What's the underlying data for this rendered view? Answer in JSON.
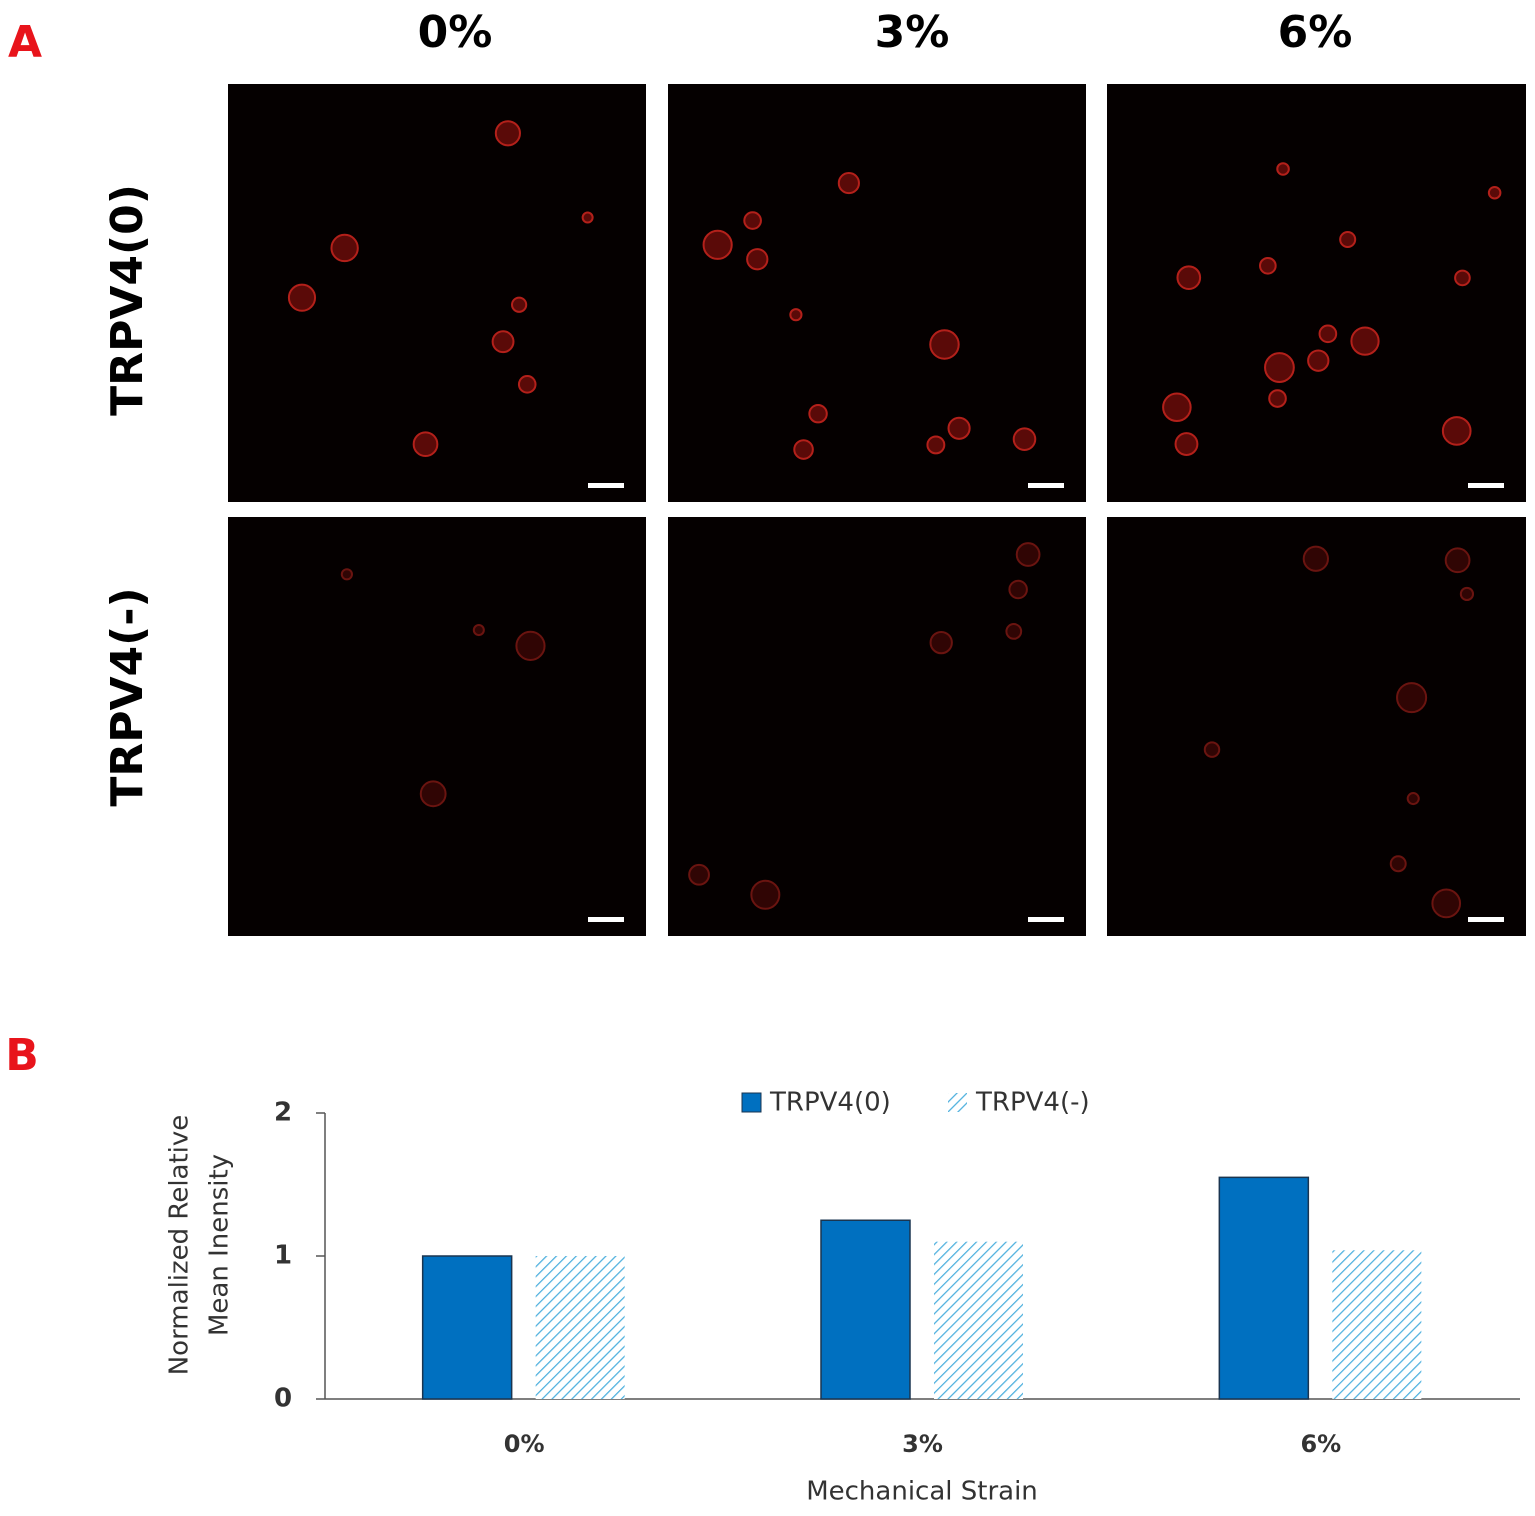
{
  "panel_a": {
    "label": "A",
    "column_labels": [
      "0%",
      "3%",
      "6%"
    ],
    "row_labels": [
      "TRPV4(0)",
      "TRPV4(-)"
    ]
  },
  "panel_b": {
    "label": "B"
  },
  "chart_data": {
    "type": "bar",
    "categories": [
      "0%",
      "3%",
      "6%"
    ],
    "series": [
      {
        "name": "TRPV4(0)",
        "color": "#0070c0",
        "hatch": false,
        "values": [
          1.0,
          1.25,
          1.55
        ]
      },
      {
        "name": "TRPV4(-)",
        "color": "#4db0de",
        "hatch": true,
        "values": [
          1.0,
          1.1,
          1.04
        ]
      }
    ],
    "ylabel": [
      "Normalized Relative",
      "Mean Inensity"
    ],
    "xlabel": "Mechanical Strain",
    "ylim": [
      0,
      2
    ],
    "yticks": [
      0,
      1,
      2
    ],
    "grid": false,
    "legend": "top"
  }
}
